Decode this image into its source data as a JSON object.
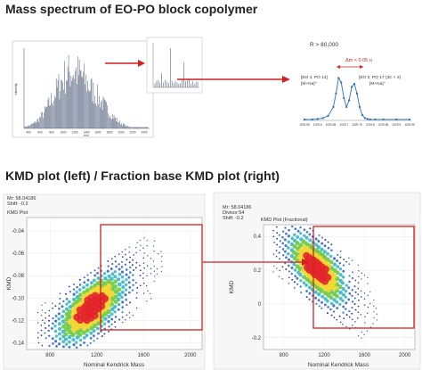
{
  "headings": {
    "top": "Mass spectrum of EO-PO block copolymer",
    "bottom": "KMD plot (left) / Fraction base KMD plot (right)"
  },
  "chart_data": [
    {
      "type": "bar",
      "role": "full mass spectrum",
      "x_ticks": [
        "400",
        "600",
        "800",
        "1000",
        "1200",
        "1400",
        "1600",
        "1800",
        "2000",
        "2200",
        "2400"
      ],
      "ylabel": "Intensity",
      "xlabel": "m/z"
    },
    {
      "type": "bar",
      "role": "zoomed spectrum segment"
    },
    {
      "type": "line",
      "role": "isotope cluster close-up",
      "resolution_label": "R > 80,000",
      "delta_label": "Δm < 0.05 u",
      "peak1_label": [
        "[EO 4, PO 14]",
        "[M+Na]⁺"
      ],
      "peak2_label": [
        "[EO 0, PO 17 (3C × 2)",
        "[M+Na]⁺"
      ],
      "x_ticks": [
        "1029.55",
        "1029.6",
        "1029.65",
        "1029.7",
        "1029.75",
        "1029.8",
        "1029.85",
        "1029.9",
        "1029.95"
      ],
      "x": [
        1029.55,
        1029.58,
        1029.6,
        1029.62,
        1029.64,
        1029.66,
        1029.67,
        1029.68,
        1029.69,
        1029.7,
        1029.71,
        1029.72,
        1029.73,
        1029.74,
        1029.75,
        1029.76,
        1029.77,
        1029.78,
        1029.79,
        1029.8,
        1029.82,
        1029.85,
        1029.9,
        1029.95
      ],
      "y": [
        0.02,
        0.02,
        0.03,
        0.05,
        0.1,
        0.3,
        0.6,
        0.95,
        0.85,
        0.5,
        0.3,
        0.45,
        0.75,
        0.82,
        0.6,
        0.3,
        0.12,
        0.05,
        0.03,
        0.02,
        0.02,
        0.02,
        0.02,
        0.02
      ]
    },
    {
      "type": "scatter",
      "role": "KMD plot",
      "header": [
        "Mr: 58.04186",
        "Shift: -0.2"
      ],
      "panel_title": "KMD Plot",
      "xlabel": "Nominal Kendrick Mass",
      "ylabel": "KMD",
      "x_ticks": [
        "800",
        "1200",
        "1600",
        "2000"
      ],
      "y_ticks": [
        "-0.04",
        "-0.06",
        "-0.08",
        "-0.10",
        "-0.12",
        "-0.14"
      ],
      "xlim": [
        600,
        2100
      ],
      "ylim": [
        -0.146,
        -0.028
      ],
      "trend": {
        "x": [
          700,
          2030
        ],
        "y": [
          -0.14,
          -0.048
        ]
      }
    },
    {
      "type": "scatter",
      "role": "fraction base KMD plot",
      "header": [
        "Mr: 58.04186",
        "Divisor:54",
        "Shift: -0.2"
      ],
      "panel_title": "KMD Plot (Fractional)",
      "xlabel": "Nominal Kendrick Mass",
      "ylabel": "KMD",
      "x_ticks": [
        "800",
        "1200",
        "1600",
        "2000"
      ],
      "y_ticks": [
        "-0.2",
        "0",
        "0.2",
        "0.4"
      ],
      "xlim": [
        600,
        2100
      ],
      "ylim": [
        -0.27,
        0.47
      ],
      "trend": {
        "x": [
          700,
          2030
        ],
        "y": [
          0.4,
          -0.2
        ]
      }
    }
  ],
  "colors": {
    "arrow": "#d21f1f",
    "highlight_box": "#d21f1f",
    "spectrum_fill": "#c4cbe0",
    "spectrum_line": "#55637f",
    "cluster_line": "#3f7fc4",
    "cluster_point": "#2b6cb5",
    "bubble_scale": [
      "#1d2a8a",
      "#2f67c8",
      "#37b7c8",
      "#6cc940",
      "#f2d52b",
      "#e2262b"
    ]
  }
}
